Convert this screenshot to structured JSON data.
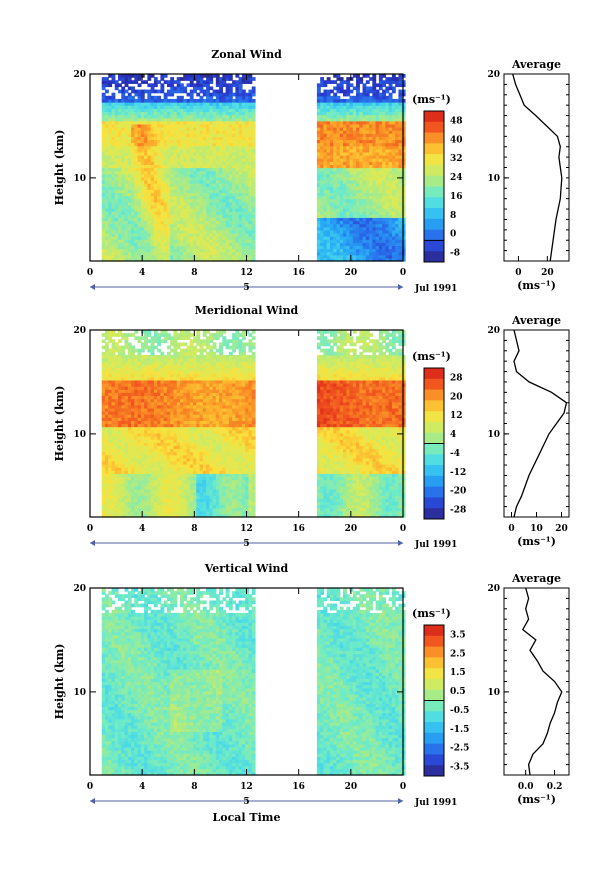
{
  "chart_data": [
    {
      "type": "heatmap",
      "title": "Zonal Wind",
      "ylabel": "Height (km)",
      "units": "(ms⁻¹)",
      "ylim": [
        2,
        20
      ],
      "yticks": [
        "10",
        "20"
      ],
      "xlim": [
        0,
        24
      ],
      "xticks": [
        "0",
        "4",
        "8",
        "12",
        "16",
        "20",
        "0"
      ],
      "day_label": "5",
      "date_label": "Jul 1991",
      "data_gaps_hours": [
        [
          12.8,
          17.2
        ]
      ],
      "colorbar": {
        "ticks": [
          "48",
          "40",
          "32",
          "24",
          "16",
          "8",
          "0",
          "-8"
        ],
        "min": -8,
        "max": 48
      },
      "profile": {
        "title": "Average",
        "xlabel": "(ms⁻¹)",
        "xticks": [
          "0",
          "20"
        ],
        "xlim": [
          -10,
          35
        ],
        "yticks": [
          "10",
          "20"
        ],
        "heights": [
          2,
          4,
          6,
          8,
          10,
          12,
          13,
          14,
          16,
          17,
          18,
          19,
          20
        ],
        "values": [
          22,
          24,
          26,
          29,
          30,
          28,
          29,
          27,
          12,
          4,
          1,
          -2,
          -4
        ]
      }
    },
    {
      "type": "heatmap",
      "title": "Meridional Wind",
      "ylabel": "Height (km)",
      "units": "(ms⁻¹)",
      "ylim": [
        2,
        20
      ],
      "yticks": [
        "10",
        "20"
      ],
      "xlim": [
        0,
        24
      ],
      "xticks": [
        "0",
        "4",
        "8",
        "12",
        "16",
        "20",
        "0"
      ],
      "day_label": "5",
      "date_label": "Jul 1991",
      "data_gaps_hours": [
        [
          12.8,
          17.2
        ]
      ],
      "colorbar": {
        "ticks": [
          "28",
          "20",
          "12",
          "4",
          "-4",
          "-12",
          "-20",
          "-28"
        ],
        "min": -28,
        "max": 28
      },
      "profile": {
        "title": "Average",
        "xlabel": "(ms⁻¹)",
        "xticks": [
          "0",
          "10",
          "20"
        ],
        "xlim": [
          -3,
          23
        ],
        "yticks": [
          "10",
          "20"
        ],
        "heights": [
          2,
          3,
          4,
          6,
          8,
          10,
          11,
          12,
          13,
          14,
          15,
          16,
          17,
          18,
          19,
          20
        ],
        "values": [
          1,
          2,
          4,
          7,
          11,
          15,
          18,
          21,
          22,
          16,
          7,
          2,
          1,
          3,
          2,
          1
        ]
      }
    },
    {
      "type": "heatmap",
      "title": "Vertical Wind",
      "ylabel": "Height (km)",
      "xlabel": "Local Time",
      "units": "(ms⁻¹)",
      "ylim": [
        2,
        20
      ],
      "yticks": [
        "10",
        "20"
      ],
      "xlim": [
        0,
        24
      ],
      "xticks": [
        "0",
        "4",
        "8",
        "12",
        "16",
        "20",
        "0"
      ],
      "day_label": "5",
      "date_label": "Jul 1991",
      "data_gaps_hours": [
        [
          12.8,
          17.2
        ]
      ],
      "colorbar": {
        "ticks": [
          "3.5",
          "2.5",
          "1.5",
          "0.5",
          "-0.5",
          "-1.5",
          "-2.5",
          "-3.5"
        ],
        "min": -3.5,
        "max": 3.5
      },
      "profile": {
        "title": "Average",
        "xlabel": "(ms⁻¹)",
        "xticks": [
          "0.0",
          "0.2"
        ],
        "xlim": [
          -0.15,
          0.3
        ],
        "yticks": [
          "10",
          "20"
        ],
        "heights": [
          2,
          3,
          4,
          5,
          6,
          7,
          8,
          9,
          10,
          11,
          12,
          13,
          14,
          15,
          16,
          17,
          18,
          19,
          20
        ],
        "values": [
          0.03,
          0.02,
          0.05,
          0.12,
          0.15,
          0.17,
          0.2,
          0.22,
          0.25,
          0.2,
          0.12,
          0.08,
          0.03,
          0.07,
          -0.02,
          0.02,
          0.0,
          0.02,
          0.0
        ]
      }
    }
  ]
}
